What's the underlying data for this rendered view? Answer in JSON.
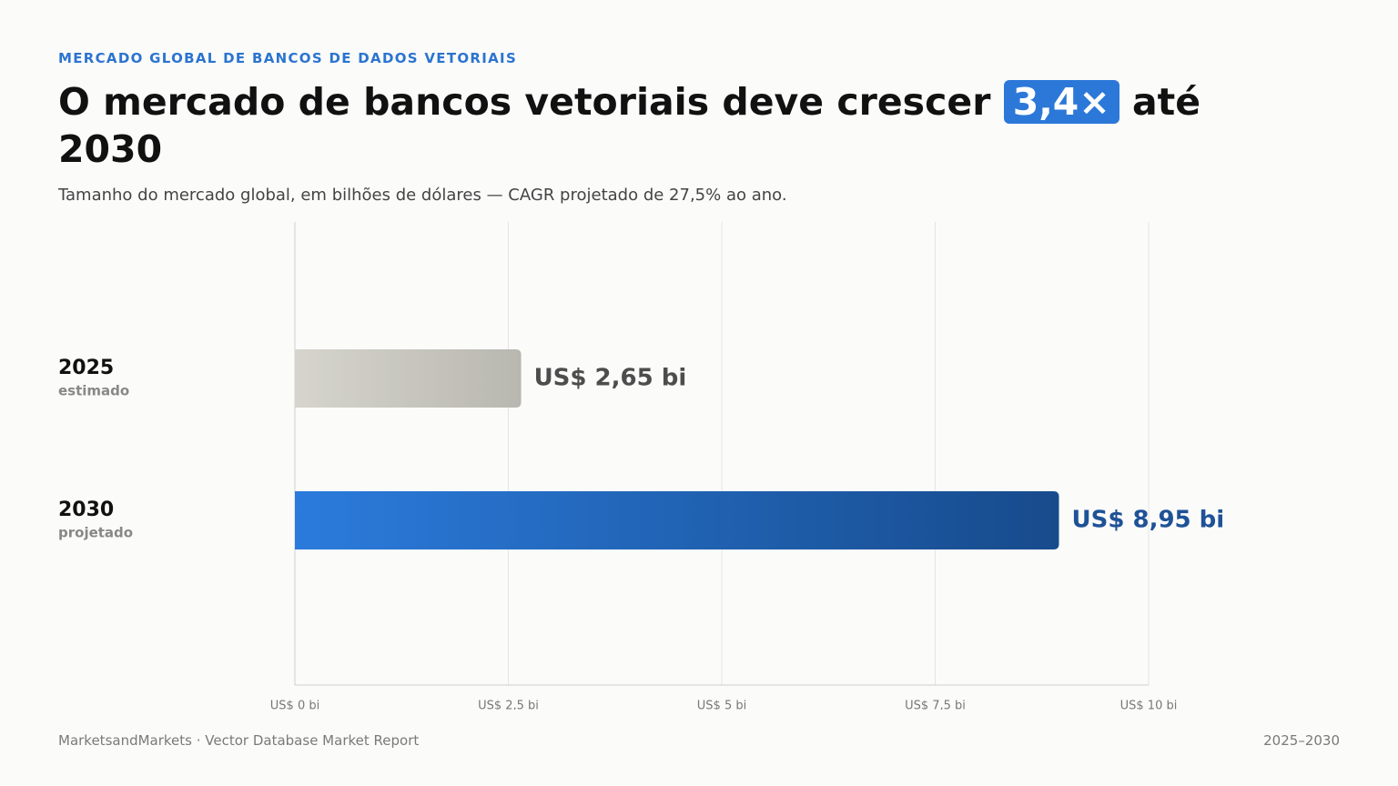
{
  "chart_data": {
    "type": "hbar",
    "kicker": "MERCADO GLOBAL DE BANCOS DE DADOS VETORIAIS",
    "title": "O mercado de bancos vetoriais deve crescer",
    "title_highlight": "3,4×",
    "title_end": "até 2030",
    "subtitle": "Tamanho do mercado global, em bilhões de dólares — CAGR projetado de 27,5% ao ano.",
    "categories": [
      "2025",
      "2030"
    ],
    "category_notes": [
      "estimado",
      "projetado"
    ],
    "values": [
      2.65,
      8.95
    ],
    "value_labels": [
      "US$ 2,65 bi",
      "US$ 8,95 bi"
    ],
    "gradients": [
      [
        "#d6d5cd",
        "#b8b7b0"
      ],
      [
        "#2b7bdc",
        "#174b8c"
      ]
    ],
    "label_colors": [
      "#4d4d4d",
      "#1f5296"
    ],
    "xlim": [
      0,
      10
    ],
    "xticks": [
      {
        "value": 0,
        "label": "US$ 0 bi"
      },
      {
        "value": 2.5,
        "label": "US$ 2,5 bi"
      },
      {
        "value": 5,
        "label": "US$ 5 bi"
      },
      {
        "value": 7.5,
        "label": "US$ 7,5 bi"
      },
      {
        "value": 10,
        "label": "US$ 10 bi"
      }
    ],
    "grid": true,
    "source": "MarketsandMarkets · Vector Database Market Report",
    "period": "2025–2030"
  }
}
